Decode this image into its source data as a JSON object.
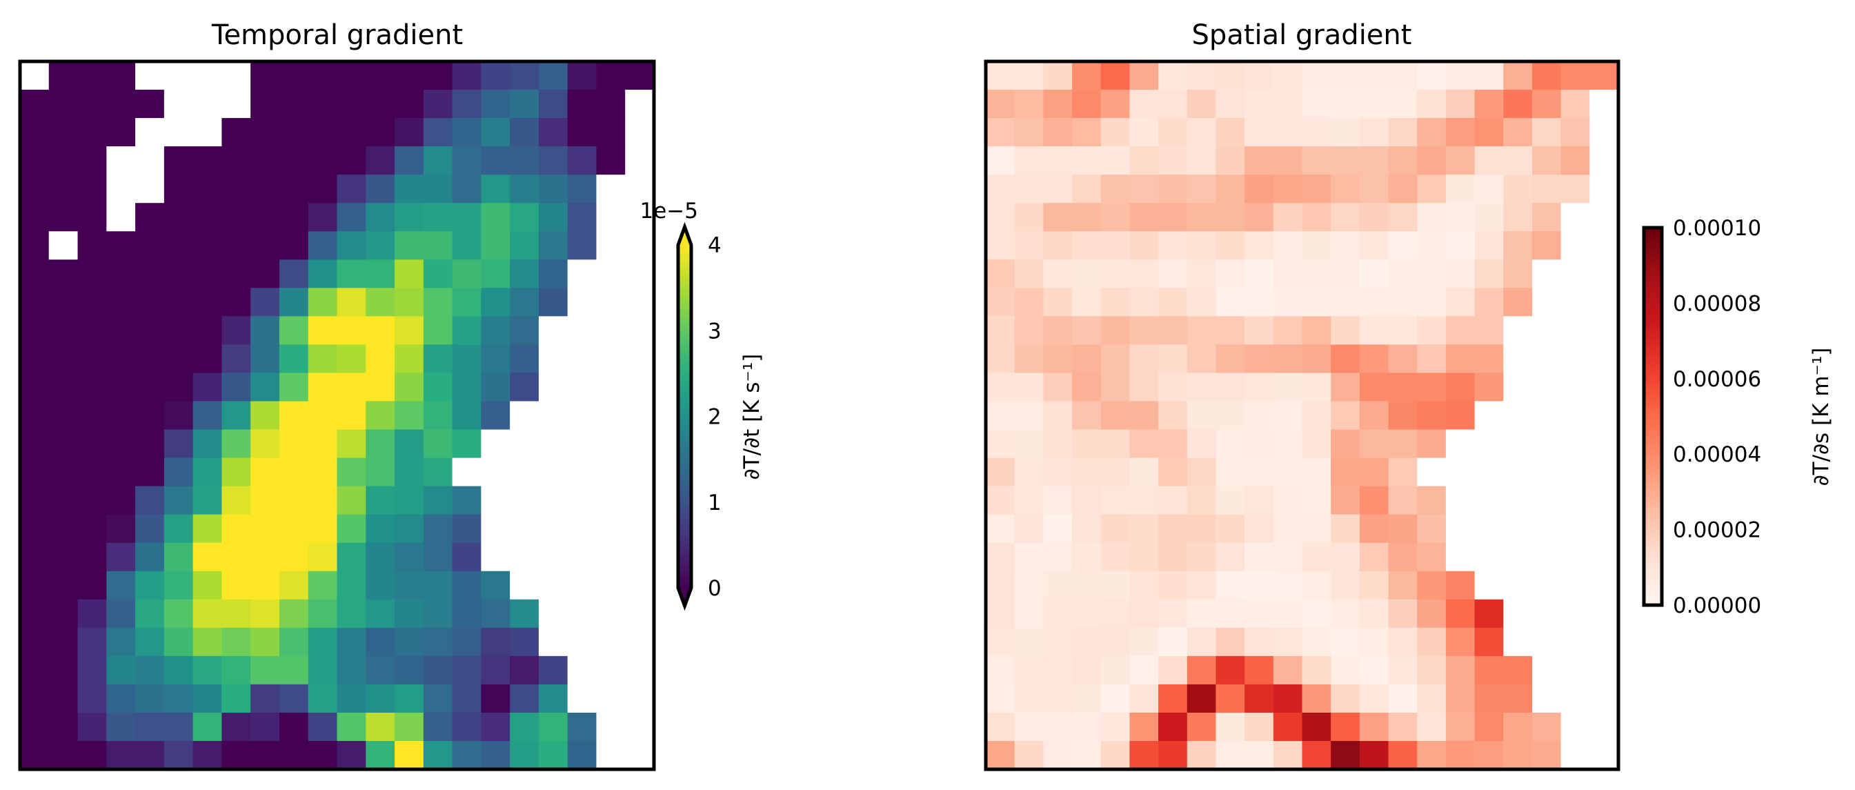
{
  "chart_data": [
    {
      "type": "heatmap",
      "title": "Temporal gradient",
      "colormap": "viridis",
      "value_scale": 1e-05,
      "vlim": [
        0,
        4
      ],
      "extend": "both",
      "colorbar": {
        "offset_label": "1e−5",
        "ticks": [
          "0",
          "1",
          "2",
          "3",
          "4"
        ],
        "tick_values": [
          0,
          1,
          2,
          3,
          4
        ],
        "label": "∂T/∂t [K s⁻¹]"
      },
      "missing_color": "#ffffff",
      "values": [
        [
          null,
          0,
          0,
          0,
          null,
          null,
          null,
          null,
          0,
          0,
          0,
          0,
          0,
          0,
          0,
          0.4,
          0.8,
          0.9,
          1.2,
          0.2,
          0,
          0
        ],
        [
          0,
          0,
          0,
          0,
          0,
          null,
          null,
          null,
          0,
          0,
          0,
          0,
          0,
          0,
          0.4,
          0.9,
          1.3,
          1.5,
          0.9,
          0,
          0,
          null
        ],
        [
          0,
          0,
          0,
          0,
          null,
          null,
          null,
          0,
          0,
          0,
          0,
          0,
          0,
          0.2,
          1.0,
          1.3,
          1.7,
          1.1,
          0.5,
          0,
          0,
          null
        ],
        [
          0,
          0,
          0,
          null,
          null,
          0,
          0,
          0,
          0,
          0,
          0,
          0,
          0.3,
          1.2,
          1.9,
          1.4,
          1.2,
          1.2,
          1.0,
          0.6,
          0,
          null
        ],
        [
          0,
          0,
          0,
          null,
          null,
          0,
          0,
          0,
          0,
          0,
          0,
          0.6,
          1.1,
          1.8,
          1.8,
          1.4,
          2.1,
          1.7,
          1.5,
          1.2,
          null,
          null
        ],
        [
          0,
          0,
          0,
          null,
          0,
          0,
          0,
          0,
          0,
          0,
          0.3,
          1.2,
          1.9,
          2.2,
          2.3,
          2.3,
          2.7,
          2.4,
          1.8,
          1.0,
          null,
          null
        ],
        [
          0,
          null,
          0,
          0,
          0,
          0,
          0,
          0,
          0,
          0,
          1.2,
          1.9,
          2.1,
          2.7,
          2.7,
          2.3,
          2.7,
          2.3,
          1.6,
          1.0,
          null,
          null
        ],
        [
          0,
          0,
          0,
          0,
          0,
          0,
          0,
          0,
          0,
          0.9,
          2.0,
          2.6,
          2.6,
          3.5,
          2.5,
          2.7,
          2.6,
          1.9,
          1.3,
          null,
          null,
          null
        ],
        [
          0,
          0,
          0,
          0,
          0,
          0,
          0,
          0,
          0.8,
          1.8,
          3.3,
          3.8,
          3.3,
          3.4,
          2.9,
          2.6,
          2.0,
          1.6,
          1.1,
          null,
          null,
          null
        ],
        [
          0,
          0,
          0,
          0,
          0,
          0,
          0,
          0.4,
          1.5,
          3.0,
          4,
          4,
          4,
          3.8,
          2.9,
          2.3,
          1.7,
          1.4,
          null,
          null,
          null,
          null
        ],
        [
          0,
          0,
          0,
          0,
          0,
          0,
          0,
          0.7,
          1.5,
          2.5,
          3.4,
          3.5,
          4,
          3.5,
          2.3,
          2.0,
          1.6,
          1.2,
          null,
          null,
          null,
          null
        ],
        [
          0,
          0,
          0,
          0,
          0,
          0,
          0.4,
          1.1,
          1.9,
          3.0,
          4,
          4,
          4,
          3.3,
          2.5,
          2.0,
          1.5,
          0.9,
          null,
          null,
          null,
          null
        ],
        [
          0,
          0,
          0,
          0,
          0,
          0.1,
          1.2,
          2.1,
          3.5,
          4,
          4,
          4,
          3.3,
          3.0,
          2.6,
          2.0,
          1.2,
          null,
          null,
          null,
          null,
          null
        ],
        [
          0,
          0,
          0,
          0,
          0,
          0.7,
          1.9,
          3.0,
          3.8,
          4,
          4,
          3.6,
          2.8,
          2.2,
          2.7,
          2.5,
          null,
          null,
          null,
          null,
          null,
          null
        ],
        [
          0,
          0,
          0,
          0,
          0,
          1.2,
          2.2,
          3.5,
          4,
          4,
          4,
          3.0,
          2.8,
          2.2,
          2.4,
          null,
          null,
          null,
          null,
          null,
          null,
          null
        ],
        [
          0,
          0,
          0,
          0,
          0.9,
          1.6,
          2.3,
          3.8,
          4,
          4,
          4,
          3.3,
          2.3,
          2.2,
          1.9,
          1.6,
          null,
          null,
          null,
          null,
          null,
          null
        ],
        [
          0,
          0,
          0,
          0.1,
          1.1,
          2.3,
          3.5,
          4,
          4,
          4,
          4,
          2.9,
          2.0,
          1.9,
          1.4,
          1.1,
          null,
          null,
          null,
          null,
          null,
          null
        ],
        [
          0,
          0,
          0,
          0.5,
          1.5,
          2.7,
          4,
          4,
          4,
          4,
          3.9,
          2.4,
          1.8,
          1.6,
          1.4,
          0.8,
          null,
          null,
          null,
          null,
          null,
          null
        ],
        [
          0,
          0,
          0,
          1.4,
          2.2,
          2.6,
          3.5,
          4,
          4,
          3.8,
          3.0,
          2.4,
          1.8,
          1.7,
          1.7,
          1.3,
          1.6,
          null,
          null,
          null,
          null,
          null
        ],
        [
          0,
          0,
          0.4,
          1.2,
          2.4,
          2.9,
          3.7,
          3.7,
          3.8,
          3.2,
          2.8,
          2.4,
          2.1,
          1.8,
          1.7,
          1.3,
          1.4,
          1.9,
          null,
          null,
          null,
          null
        ],
        [
          0,
          0,
          0.6,
          1.6,
          2.1,
          2.7,
          3.3,
          3.1,
          3.3,
          2.8,
          2.2,
          1.7,
          1.3,
          1.5,
          1.4,
          1.2,
          0.7,
          0.8,
          null,
          null,
          null,
          null
        ],
        [
          0,
          0,
          0.6,
          1.8,
          1.7,
          2.0,
          2.4,
          2.6,
          2.9,
          2.9,
          2.2,
          1.7,
          1.4,
          1.3,
          1.1,
          0.9,
          0.6,
          0.3,
          0.8,
          null,
          null,
          null
        ],
        [
          0,
          0,
          0.6,
          1.3,
          1.5,
          1.6,
          1.8,
          2.5,
          0.7,
          0.9,
          2.3,
          1.8,
          2.0,
          2.2,
          1.4,
          0.9,
          0.05,
          0.9,
          1.9,
          null,
          null,
          null
        ],
        [
          0,
          0,
          0.4,
          1.1,
          1.0,
          1.0,
          2.6,
          0.3,
          0.4,
          0,
          0.8,
          2.9,
          3.6,
          3.2,
          1.2,
          0.8,
          0.5,
          2.3,
          2.6,
          1.4,
          null,
          null
        ],
        [
          0,
          0,
          0,
          0.3,
          0.3,
          0.7,
          0.3,
          0,
          0,
          0,
          0,
          0.3,
          2.6,
          4,
          2.1,
          1.4,
          1.2,
          2.2,
          2.5,
          1.3,
          null,
          null
        ]
      ]
    },
    {
      "type": "heatmap",
      "title": "Spatial gradient",
      "colormap": "Reds",
      "value_scale": 1e-05,
      "vlim": [
        0,
        10
      ],
      "extend": "neither",
      "colorbar": {
        "ticks": [
          "0.00000",
          "0.00002",
          "0.00004",
          "0.00006",
          "0.00008",
          "0.00010"
        ],
        "tick_values": [
          0,
          2,
          4,
          6,
          8,
          10
        ],
        "label": "∂T/∂s [K m⁻¹]"
      },
      "missing_color": "#ffffff",
      "values": [
        [
          0.9,
          0.9,
          1.5,
          3.9,
          5.0,
          3.0,
          0.8,
          1.1,
          1.2,
          1.0,
          0.8,
          0.6,
          0.6,
          0.6,
          0.6,
          0.3,
          0.6,
          0.6,
          2.9,
          4.5,
          4.0,
          4.0
        ],
        [
          2.7,
          2.5,
          3.3,
          4.0,
          3.3,
          1.1,
          1.1,
          1.8,
          1.0,
          0.8,
          0.8,
          0.5,
          0.4,
          0.5,
          0.5,
          1.2,
          1.9,
          3.5,
          4.6,
          3.6,
          2.0,
          null
        ],
        [
          2.1,
          2.3,
          2.8,
          2.5,
          1.5,
          0.8,
          1.4,
          1.1,
          1.7,
          0.9,
          0.9,
          0.8,
          0.7,
          1.0,
          1.6,
          2.7,
          3.4,
          3.7,
          2.7,
          1.6,
          2.2,
          null
        ],
        [
          0.3,
          0.9,
          0.9,
          0.8,
          0.8,
          1.4,
          1.3,
          1.0,
          1.8,
          2.7,
          2.7,
          2.3,
          2.3,
          2.3,
          2.6,
          3.0,
          2.6,
          1.2,
          1.2,
          2.3,
          2.9,
          null
        ],
        [
          1.0,
          1.1,
          1.1,
          1.6,
          2.3,
          2.2,
          2.4,
          2.2,
          2.6,
          3.3,
          3.1,
          3.0,
          2.5,
          2.3,
          2.8,
          2.0,
          0.7,
          0.6,
          1.5,
          1.6,
          1.6,
          null
        ],
        [
          1.1,
          1.5,
          2.6,
          2.6,
          2.4,
          2.8,
          2.8,
          2.6,
          2.6,
          2.8,
          1.7,
          2.1,
          1.6,
          1.8,
          1.6,
          0.6,
          0.4,
          0.7,
          1.6,
          2.3,
          null,
          null
        ],
        [
          1.1,
          1.3,
          1.6,
          1.3,
          1.3,
          1.5,
          1.1,
          1.2,
          1.4,
          0.9,
          0.6,
          0.7,
          0.6,
          0.8,
          0.3,
          0.4,
          0.3,
          1.1,
          2.3,
          2.9,
          null,
          null
        ],
        [
          2.0,
          1.5,
          0.8,
          0.7,
          0.8,
          0.9,
          0.6,
          0.9,
          0.5,
          0.2,
          0.6,
          0.6,
          0.6,
          0.2,
          0.5,
          0.5,
          0.6,
          1.4,
          2.3,
          null,
          null,
          null
        ],
        [
          1.8,
          2.1,
          1.5,
          0.9,
          1.4,
          1.2,
          1.4,
          1.0,
          0.3,
          0.3,
          0.4,
          0.4,
          0.4,
          0.5,
          0.5,
          0.5,
          1.1,
          2.1,
          3.0,
          null,
          null,
          null
        ],
        [
          1.5,
          2.1,
          2.4,
          2.2,
          2.6,
          2.3,
          2.3,
          2.0,
          2.0,
          1.5,
          2.0,
          2.5,
          1.5,
          0.9,
          0.9,
          1.3,
          2.1,
          2.1,
          null,
          null,
          null,
          null
        ],
        [
          1.5,
          2.3,
          2.6,
          2.7,
          2.3,
          1.6,
          1.4,
          2.0,
          2.6,
          2.8,
          2.9,
          3.0,
          4.0,
          3.5,
          2.8,
          2.1,
          3.1,
          3.1,
          null,
          null,
          null,
          null
        ],
        [
          1.0,
          1.0,
          1.9,
          2.8,
          2.3,
          1.6,
          1.2,
          1.0,
          1.0,
          0.9,
          0.7,
          0.8,
          2.8,
          4.0,
          4.0,
          4.0,
          4.3,
          3.6,
          null,
          null,
          null,
          null
        ],
        [
          0.6,
          0.6,
          1.2,
          2.2,
          2.7,
          2.7,
          1.6,
          0.7,
          0.7,
          0.6,
          0.4,
          1.1,
          2.0,
          3.0,
          4.1,
          4.4,
          4.5,
          null,
          null,
          null,
          null,
          null
        ],
        [
          0.8,
          0.7,
          1.2,
          1.4,
          1.4,
          2.1,
          2.1,
          1.0,
          0.5,
          0.6,
          0.5,
          1.1,
          3.0,
          2.6,
          2.6,
          3.0,
          null,
          null,
          null,
          null,
          null,
          null
        ],
        [
          1.7,
          0.8,
          1.1,
          1.2,
          1.2,
          0.7,
          2.0,
          1.6,
          0.5,
          0.5,
          0.4,
          0.5,
          3.1,
          3.1,
          2.0,
          null,
          null,
          null,
          null,
          null,
          null,
          null
        ],
        [
          1.3,
          0.8,
          0.6,
          1.1,
          0.9,
          0.9,
          1.1,
          1.4,
          0.7,
          0.9,
          0.6,
          0.5,
          3.0,
          3.8,
          2.2,
          2.6,
          null,
          null,
          null,
          null,
          null,
          null
        ],
        [
          0.5,
          1.0,
          0.2,
          1.0,
          1.5,
          1.4,
          1.7,
          1.7,
          1.5,
          1.1,
          0.6,
          0.6,
          1.5,
          3.3,
          3.2,
          2.4,
          null,
          null,
          null,
          null,
          null,
          null
        ],
        [
          1.1,
          0.5,
          0.5,
          0.8,
          1.3,
          1.4,
          1.7,
          1.5,
          1.0,
          0.4,
          0.5,
          1.0,
          1.0,
          2.0,
          3.0,
          2.7,
          null,
          null,
          null,
          null,
          null,
          null
        ],
        [
          1.1,
          0.4,
          0.7,
          0.7,
          0.7,
          1.1,
          1.3,
          1.0,
          0.3,
          0.3,
          0.3,
          0.5,
          1.0,
          1.4,
          2.6,
          3.6,
          4.2,
          null,
          null,
          null,
          null,
          null
        ],
        [
          1.1,
          0.4,
          0.8,
          0.8,
          0.9,
          1.1,
          0.8,
          0.4,
          0.5,
          0.4,
          0.4,
          0.3,
          0.6,
          0.9,
          1.8,
          3.2,
          5.0,
          6.8,
          null,
          null,
          null,
          null
        ],
        [
          0.9,
          0.7,
          0.9,
          1.0,
          1.0,
          0.7,
          0.2,
          1.0,
          1.9,
          1.1,
          0.9,
          0.5,
          0.3,
          0.5,
          1.1,
          1.8,
          3.8,
          5.8,
          null,
          null,
          null,
          null
        ],
        [
          0.5,
          0.8,
          0.8,
          1.0,
          0.7,
          0.3,
          1.3,
          4.5,
          6.5,
          5.2,
          2.7,
          1.4,
          0.5,
          0.3,
          0.8,
          1.5,
          3.0,
          4.3,
          4.3,
          null,
          null,
          null
        ],
        [
          0.4,
          0.8,
          0.8,
          0.7,
          0.3,
          1.1,
          5.3,
          8.8,
          4.8,
          6.8,
          7.2,
          3.6,
          1.6,
          0.9,
          0.3,
          1.2,
          3.0,
          4.1,
          4.1,
          null,
          null,
          null
        ],
        [
          1.2,
          0.6,
          0.6,
          0.6,
          0.8,
          3.7,
          7.5,
          4.5,
          0.7,
          1.5,
          6.3,
          8.4,
          5.3,
          3.3,
          2.1,
          1.1,
          2.9,
          4.0,
          3.1,
          2.8,
          null,
          null
        ],
        [
          3.1,
          1.5,
          0.6,
          0.4,
          1.5,
          5.8,
          6.3,
          1.7,
          0.5,
          0.5,
          1.6,
          6.0,
          9.2,
          7.9,
          5.2,
          3.1,
          3.5,
          3.4,
          3.1,
          3.0,
          null,
          null
        ]
      ]
    }
  ]
}
